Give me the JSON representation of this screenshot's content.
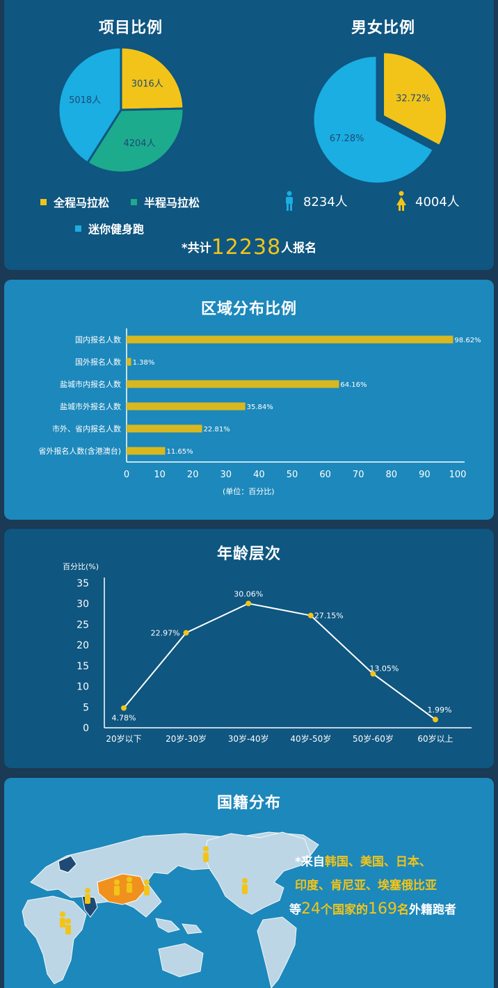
{
  "project_section": {
    "title": "项目比例",
    "legend": [
      {
        "label": "全程马拉松",
        "color": "#f2c41a"
      },
      {
        "label": "半程马拉松",
        "color": "#1dab8e"
      },
      {
        "label": "迷你健身跑",
        "color": "#1aaee2"
      }
    ]
  },
  "gender_section": {
    "title": "男女比例",
    "male_count": "8234人",
    "female_count": "4004人"
  },
  "total": {
    "prefix": "*共计",
    "number": "12238",
    "suffix": "人报名"
  },
  "region_section": {
    "title": "区域分布比例",
    "unit_label": "(单位：百分比)"
  },
  "age_section": {
    "title": "年龄层次",
    "y_label": "百分比(%)"
  },
  "nationality_section": {
    "title": "国籍分布",
    "line1_prefix": "*来自",
    "line1_countries": "韩国、美国、日本、",
    "line2_countries": "印度、肯尼亚、埃塞俄比亚",
    "line3_a": "等",
    "line3_num1": "24",
    "line3_b": "个国家的",
    "line3_num2": "169",
    "line3_c": "名",
    "line3_d": "外籍跑者"
  },
  "chart_data": [
    {
      "type": "pie",
      "title": "项目比例",
      "categories": [
        "全程马拉松",
        "半程马拉松",
        "迷你健身跑"
      ],
      "values": [
        3016,
        4204,
        5018
      ],
      "labels": [
        "3016人",
        "4204人",
        "5018人"
      ],
      "colors": [
        "#f2c41a",
        "#1dab8e",
        "#1aaee2"
      ]
    },
    {
      "type": "pie",
      "title": "男女比例",
      "categories": [
        "女",
        "男"
      ],
      "values": [
        32.72,
        67.28
      ],
      "labels": [
        "32.72%",
        "67.28%"
      ],
      "colors": [
        "#f2c41a",
        "#1aaee2"
      ]
    },
    {
      "type": "bar",
      "orientation": "horizontal",
      "title": "区域分布比例",
      "categories": [
        "国内报名人数",
        "国外报名人数",
        "盐城市内报名人数",
        "盐城市外报名人数",
        "市外、省内报名人数",
        "省外报名人数(含港澳台)"
      ],
      "values": [
        98.62,
        1.38,
        64.16,
        35.84,
        22.81,
        11.65
      ],
      "value_labels": [
        "98.62%",
        "1.38%",
        "64.16%",
        "35.84%",
        "22.81%",
        "11.65%"
      ],
      "xlim": [
        0,
        100
      ],
      "x_ticks": [
        0,
        10,
        20,
        30,
        40,
        50,
        60,
        70,
        80,
        90,
        100
      ],
      "xlabel": "(单位：百分比)",
      "color": "#d9b81f"
    },
    {
      "type": "line",
      "title": "年龄层次",
      "categories": [
        "20岁以下",
        "20岁-30岁",
        "30岁-40岁",
        "40岁-50岁",
        "50岁-60岁",
        "60岁以上"
      ],
      "values": [
        4.78,
        22.97,
        30.06,
        27.15,
        13.05,
        1.99
      ],
      "value_labels": [
        "4.78%",
        "22.97%",
        "30.06%",
        "27.15%",
        "13.05%",
        "1.99%"
      ],
      "ylim": [
        0,
        35
      ],
      "y_ticks": [
        0,
        5,
        10,
        15,
        20,
        25,
        30,
        35
      ],
      "ylabel": "百分比(%)",
      "point_color": "#f2c41a",
      "line_color": "#ffffff"
    }
  ]
}
